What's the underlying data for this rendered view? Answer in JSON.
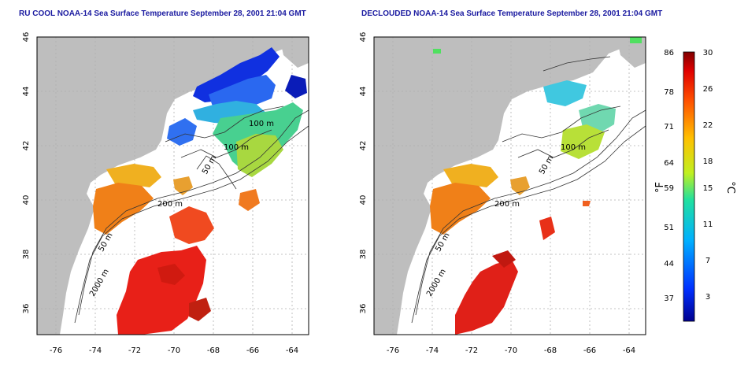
{
  "panels": [
    {
      "title": "RU COOL NOAA-14 Sea Surface Temperature September 28, 2001 21:04 GMT",
      "x_ticks": [
        "-76",
        "-74",
        "-72",
        "-70",
        "-68",
        "-66",
        "-64"
      ],
      "y_ticks": [
        "46",
        "44",
        "42",
        "40",
        "38",
        "36"
      ],
      "contour_labels": [
        "100 m",
        "100 m",
        "50 m",
        "200 m",
        "50 m",
        "2000 m"
      ]
    },
    {
      "title": "DECLOUDED NOAA-14 Sea Surface Temperature September 28, 2001 21:04 GMT",
      "x_ticks": [
        "-76",
        "-74",
        "-72",
        "-70",
        "-68",
        "-66",
        "-64"
      ],
      "y_ticks": [
        "46",
        "44",
        "42",
        "40",
        "38",
        "36"
      ],
      "contour_labels": [
        "100 m",
        "50 m",
        "200 m",
        "50 m",
        "2000 m"
      ]
    }
  ],
  "colorbar": {
    "fahrenheit_label": "°F",
    "celsius_label": "°C",
    "fahrenheit_ticks": [
      "86",
      "78",
      "71",
      "64",
      "59",
      "51",
      "44",
      "37"
    ],
    "celsius_ticks": [
      "30",
      "26",
      "22",
      "18",
      "15",
      "11",
      "7",
      "3"
    ]
  },
  "colors": {
    "land": "#bebebe",
    "title": "#1a1aa0",
    "warm": "#d01010",
    "cool": "#0a2dd0"
  }
}
